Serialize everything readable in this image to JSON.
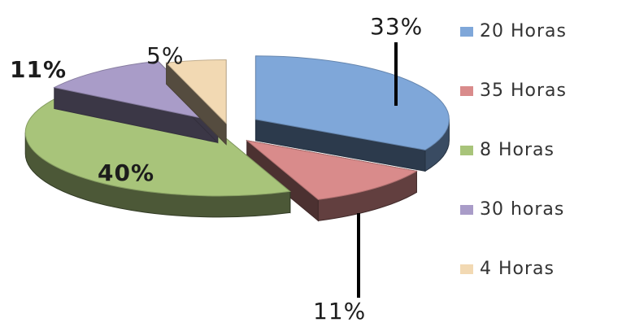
{
  "chart_data": {
    "type": "pie",
    "style": "3d-exploded",
    "title": "",
    "legend_position": "right",
    "slices": [
      {
        "name": "20 Horas",
        "value": 33,
        "label": "33%",
        "color": "#7fa7d9"
      },
      {
        "name": "35 Horas",
        "value": 11,
        "label": "11%",
        "color": "#d98b8b"
      },
      {
        "name": "8 Horas",
        "value": 40,
        "label": "40%",
        "color": "#a8c47a"
      },
      {
        "name": "30 horas",
        "value": 11,
        "label": "11%",
        "color": "#a99cc8"
      },
      {
        "name": "4 Horas",
        "value": 5,
        "label": "5%",
        "color": "#f2d9b3"
      }
    ]
  }
}
